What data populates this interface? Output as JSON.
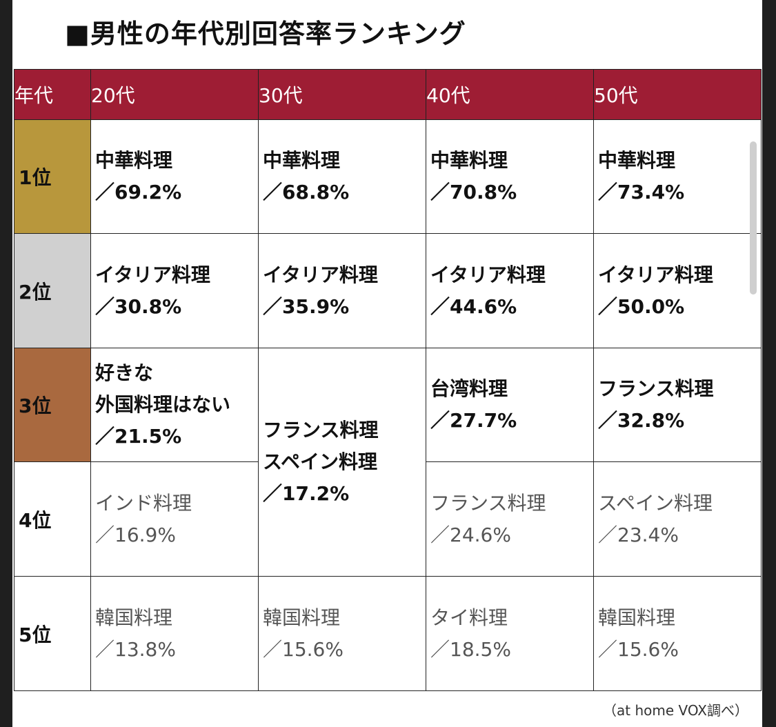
{
  "title": "■男性の年代別回答率ランキング",
  "header": {
    "corner": "年代",
    "cols": [
      "20代",
      "30代",
      "40代",
      "50代"
    ]
  },
  "rank_labels": [
    "1位",
    "2位",
    "3位",
    "4位",
    "5位"
  ],
  "rank_colors": [
    "#b8973c",
    "#d0d0d0",
    "#a9693f",
    "#ffffff",
    "#ffffff"
  ],
  "rows": [
    {
      "c20": {
        "name": "中華料理",
        "pct": "／69.2%"
      },
      "c30": {
        "name": "中華料理",
        "pct": "／68.8%"
      },
      "c40": {
        "name": "中華料理",
        "pct": "／70.8%"
      },
      "c50": {
        "name": "中華料理",
        "pct": "／73.4%"
      }
    },
    {
      "c20": {
        "name": "イタリア料理",
        "pct": "／30.8%"
      },
      "c30": {
        "name": "イタリア料理",
        "pct": "／35.9%"
      },
      "c40": {
        "name": "イタリア料理",
        "pct": "／44.6%"
      },
      "c50": {
        "name": "イタリア料理",
        "pct": "／50.0%"
      }
    },
    {
      "c20": {
        "line1": "好きな",
        "line2": "外国料理はない",
        "pct": "／21.5%"
      },
      "c30": {
        "line1": "フランス料理",
        "line2": "スペイン料理",
        "pct": "／17.2%"
      },
      "c40": {
        "name": "台湾料理",
        "pct": "／27.7%"
      },
      "c50": {
        "name": "フランス料理",
        "pct": "／32.8%"
      }
    },
    {
      "c20": {
        "name": "インド料理",
        "pct": "／16.9%"
      },
      "c40": {
        "name": "フランス料理",
        "pct": "／24.6%"
      },
      "c50": {
        "name": "スペイン料理",
        "pct": "／23.4%"
      }
    },
    {
      "c20": {
        "name": "韓国料理",
        "pct": "／13.8%"
      },
      "c30": {
        "name": "韓国料理",
        "pct": "／15.6%"
      },
      "c40": {
        "name": "タイ料理",
        "pct": "／18.5%"
      },
      "c50": {
        "name": "韓国料理",
        "pct": "／15.6%"
      }
    }
  ],
  "source": "（at home VOX調べ）"
}
